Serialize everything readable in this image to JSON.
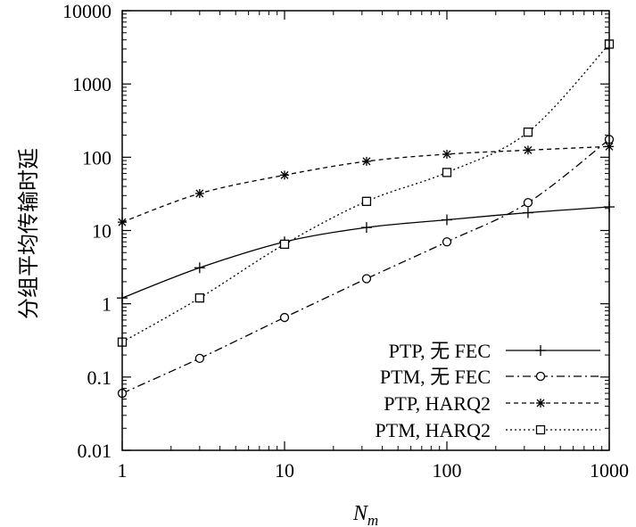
{
  "chart_data": {
    "type": "line",
    "xlabel": "N",
    "xlabel_sub": "m",
    "ylabel": "分组平均传输时延",
    "x_scale": "log",
    "y_scale": "log",
    "xlim": [
      1,
      1000
    ],
    "ylim": [
      0.01,
      10000
    ],
    "x_ticks": [
      1,
      10,
      100,
      1000
    ],
    "x_tick_labels": [
      "1",
      "10",
      "100",
      "1000"
    ],
    "y_ticks": [
      0.01,
      0.1,
      1,
      10,
      100,
      1000,
      10000
    ],
    "y_tick_labels": [
      "0.01",
      "0.1",
      "1",
      "10",
      "100",
      "1000",
      "10000"
    ],
    "grid": false,
    "legend_position": "bottom-right",
    "series": [
      {
        "name": "PTP, 无 FEC",
        "marker": "plus",
        "dash": "",
        "points": [
          [
            1,
            1.2
          ],
          [
            3,
            3.1
          ],
          [
            10,
            7.0
          ],
          [
            32,
            11
          ],
          [
            100,
            14
          ],
          [
            316,
            17.5
          ],
          [
            1000,
            21
          ]
        ],
        "marker_x": [
          1,
          3,
          10,
          32,
          100,
          316,
          1000
        ]
      },
      {
        "name": "PTM, 无 FEC",
        "marker": "circle",
        "dash": "9,4,2,4",
        "points": [
          [
            1,
            0.06
          ],
          [
            3,
            0.18
          ],
          [
            10,
            0.65
          ],
          [
            32,
            2.2
          ],
          [
            100,
            7.0
          ],
          [
            316,
            24
          ],
          [
            1000,
            175
          ]
        ],
        "marker_x": [
          1,
          3,
          10,
          32,
          100,
          316,
          1000
        ]
      },
      {
        "name": "PTP, HARQ2",
        "marker": "star",
        "dash": "5,4",
        "points": [
          [
            1,
            13
          ],
          [
            3,
            32
          ],
          [
            10,
            57
          ],
          [
            32,
            88
          ],
          [
            100,
            110
          ],
          [
            316,
            125
          ],
          [
            1000,
            140
          ]
        ],
        "marker_x": [
          1,
          3,
          10,
          32,
          100,
          316,
          1000
        ]
      },
      {
        "name": "PTM, HARQ2",
        "marker": "square",
        "dash": "2,3",
        "points": [
          [
            1,
            0.3
          ],
          [
            3,
            1.2
          ],
          [
            10,
            6.5
          ],
          [
            32,
            25
          ],
          [
            100,
            62
          ],
          [
            316,
            220
          ],
          [
            1000,
            3500
          ]
        ],
        "marker_x": [
          1,
          3,
          10,
          32,
          100,
          316,
          1000
        ]
      }
    ]
  }
}
